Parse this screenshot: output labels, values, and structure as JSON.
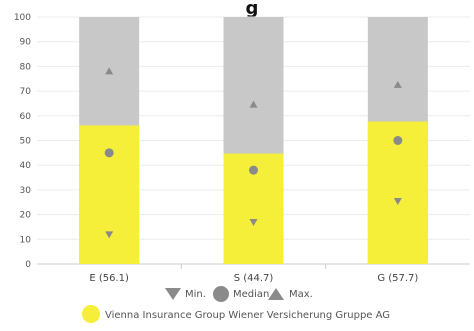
{
  "title": "g",
  "chart_data": {
    "type": "bar",
    "categories": [
      "E (56.1)",
      "S (44.7)",
      "G (57.7)"
    ],
    "ylim": [
      0,
      100
    ],
    "yticks": [
      0,
      10,
      20,
      30,
      40,
      50,
      60,
      70,
      80,
      90,
      100
    ],
    "grid": true,
    "series": [
      {
        "name": "Vienna Insurance Group Wiener Versicherung Gruppe AG",
        "values": [
          56.1,
          44.7,
          57.7
        ],
        "color": "#f5ef3a"
      }
    ],
    "range_background_max": 100,
    "range_background_color": "#c8c8c8",
    "markers": {
      "min": [
        12,
        17,
        25.5
      ],
      "median": [
        45,
        38,
        50
      ],
      "max": [
        78,
        64.5,
        72.5
      ]
    },
    "marker_color": "#8a8a8a"
  },
  "legend": {
    "min_label": "Min.",
    "median_label": "Median",
    "max_label": "Max.",
    "company_label": "Vienna Insurance Group Wiener Versicherung Gruppe AG"
  }
}
